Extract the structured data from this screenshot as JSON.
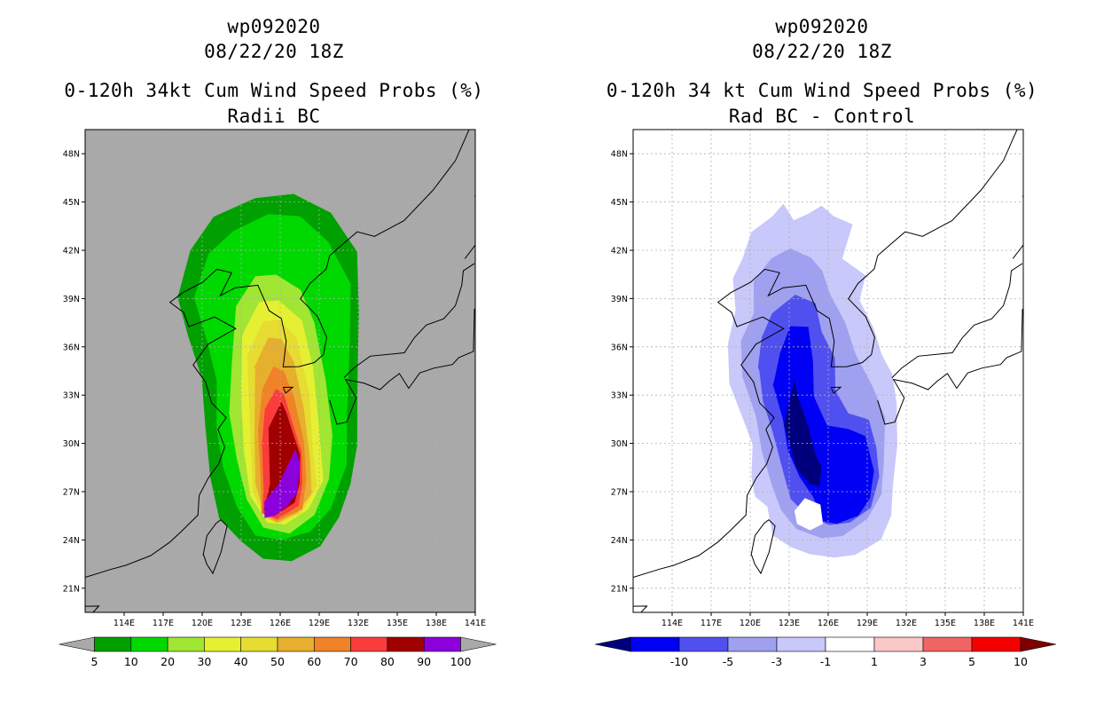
{
  "panels": [
    {
      "id": "left",
      "title_line1": "wp092020",
      "title_line2": "08/22/20 18Z",
      "title_line3": "0-120h 34kt Cum Wind Speed Probs (%)",
      "title_line4": "Radii BC",
      "background": "#a9a9a9",
      "lat_labels": [
        "48N",
        "45N",
        "42N",
        "39N",
        "36N",
        "33N",
        "30N",
        "27N",
        "24N",
        "21N"
      ],
      "lon_labels": [
        "114E",
        "117E",
        "120E",
        "123E",
        "126E",
        "129E",
        "132E",
        "135E",
        "138E",
        "141E"
      ],
      "colorbar": {
        "colors": [
          "#00a000",
          "#00d900",
          "#a0e632",
          "#e6f032",
          "#e6dc32",
          "#e6af2d",
          "#f08228",
          "#fa3c3c",
          "#a00000",
          "#8c00dc"
        ],
        "end_colors": [
          "#a9a9a9",
          "#a9a9a9"
        ],
        "labels": [
          "5",
          "10",
          "20",
          "30",
          "40",
          "50",
          "60",
          "70",
          "80",
          "90",
          "100"
        ]
      },
      "contours": [
        {
          "level": "5",
          "color": "#00a000"
        },
        {
          "level": "10",
          "color": "#00d900"
        },
        {
          "level": "20",
          "color": "#a0e632"
        },
        {
          "level": "30",
          "color": "#e6f032"
        },
        {
          "level": "40",
          "color": "#e6dc32"
        },
        {
          "level": "50",
          "color": "#e6af2d"
        },
        {
          "level": "60",
          "color": "#f08228"
        },
        {
          "level": "70",
          "color": "#fa3c3c"
        },
        {
          "level": "80",
          "color": "#a00000"
        },
        {
          "level": "90",
          "color": "#8c00dc"
        }
      ]
    },
    {
      "id": "right",
      "title_line1": "wp092020",
      "title_line2": "08/22/20 18Z",
      "title_line3": "0-120h 34 kt Cum Wind Speed Probs (%)",
      "title_line4": "Rad BC - Control",
      "background": "#ffffff",
      "lat_labels": [
        "48N",
        "45N",
        "42N",
        "39N",
        "36N",
        "33N",
        "30N",
        "27N",
        "24N",
        "21N"
      ],
      "lon_labels": [
        "114E",
        "117E",
        "120E",
        "123E",
        "126E",
        "129E",
        "132E",
        "135E",
        "138E",
        "141E"
      ],
      "colorbar": {
        "colors": [
          "#0000f5",
          "#5050f0",
          "#a0a0f0",
          "#c8c8fa",
          "#ffffff",
          "#fac8c8",
          "#f06464",
          "#f50000"
        ],
        "end_colors": [
          "#00007d",
          "#7d0000"
        ],
        "labels": [
          "-10",
          "-5",
          "-3",
          "-1",
          "1",
          "3",
          "5",
          "10"
        ]
      },
      "contours": [
        {
          "level": "-1",
          "color": "#c8c8fa"
        },
        {
          "level": "-3",
          "color": "#a0a0f0"
        },
        {
          "level": "-5",
          "color": "#5050f0"
        },
        {
          "level": "-10",
          "color": "#0000f5"
        },
        {
          "level": "<-10",
          "color": "#00007d"
        }
      ]
    }
  ]
}
